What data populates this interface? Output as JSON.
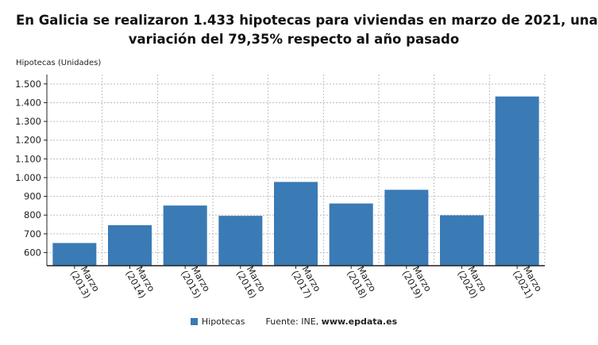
{
  "title": {
    "line1": "En Galicia se realizaron 1.433 hipotecas para viviendas en marzo de 2021, una",
    "line2": "variación del 79,35% respecto al año pasado"
  },
  "legend": {
    "series_label": "Hipotecas",
    "source_prefix": "Fuente: INE, ",
    "source_web": "www.epdata.es"
  },
  "colors": {
    "bar": "#3a7ab5",
    "grid": "#bdbdbd",
    "axis": "#222222"
  },
  "chart_data": {
    "type": "bar",
    "ylabel": "Hipotecas (Unidades)",
    "xlabel": "",
    "categories": [
      [
        "Marzo",
        "(2013)"
      ],
      [
        "Marzo",
        "(2014)"
      ],
      [
        "Marzo",
        "(2015)"
      ],
      [
        "Marzo",
        "(2016)"
      ],
      [
        "Marzo",
        "(2017)"
      ],
      [
        "Marzo",
        "(2018)"
      ],
      [
        "Marzo",
        "(2019)"
      ],
      [
        "Marzo",
        "(2020)"
      ],
      [
        "Marzo",
        "(2021)"
      ]
    ],
    "series": [
      {
        "name": "Hipotecas",
        "values": [
          651,
          746,
          851,
          796,
          977,
          862,
          935,
          799,
          1433
        ]
      }
    ],
    "ylim": [
      530,
      1550
    ],
    "yticks": [
      600,
      700,
      800,
      900,
      1000,
      1100,
      1200,
      1300,
      1400,
      1500
    ],
    "ytick_labels": [
      "600",
      "700",
      "800",
      "900",
      "1.000",
      "1.100",
      "1.200",
      "1.300",
      "1.400",
      "1.500"
    ],
    "grid": true,
    "legend_position": "bottom"
  }
}
